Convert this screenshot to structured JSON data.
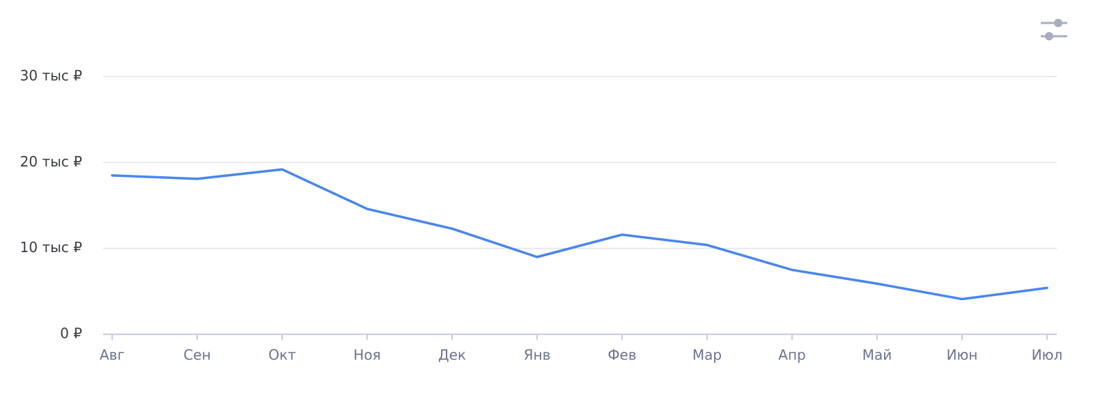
{
  "chart_data": {
    "type": "line",
    "categories": [
      "Авг",
      "Сен",
      "Окт",
      "Ноя",
      "Дек",
      "Янв",
      "Фев",
      "Мар",
      "Апр",
      "Май",
      "Июн",
      "Июл"
    ],
    "series": [
      {
        "color": "#4a86ec",
        "values": [
          18500,
          18100,
          19200,
          14600,
          12300,
          9000,
          11600,
          10400,
          7500,
          5900,
          4100,
          5400
        ]
      }
    ],
    "ylim": [
      0,
      30000
    ],
    "yticks": [
      {
        "value": 0,
        "label": "0 ₽"
      },
      {
        "value": 10000,
        "label": "10 тыс ₽"
      },
      {
        "value": 20000,
        "label": "20 тыс ₽"
      },
      {
        "value": 30000,
        "label": "30 тыс ₽"
      }
    ],
    "grid": true
  }
}
